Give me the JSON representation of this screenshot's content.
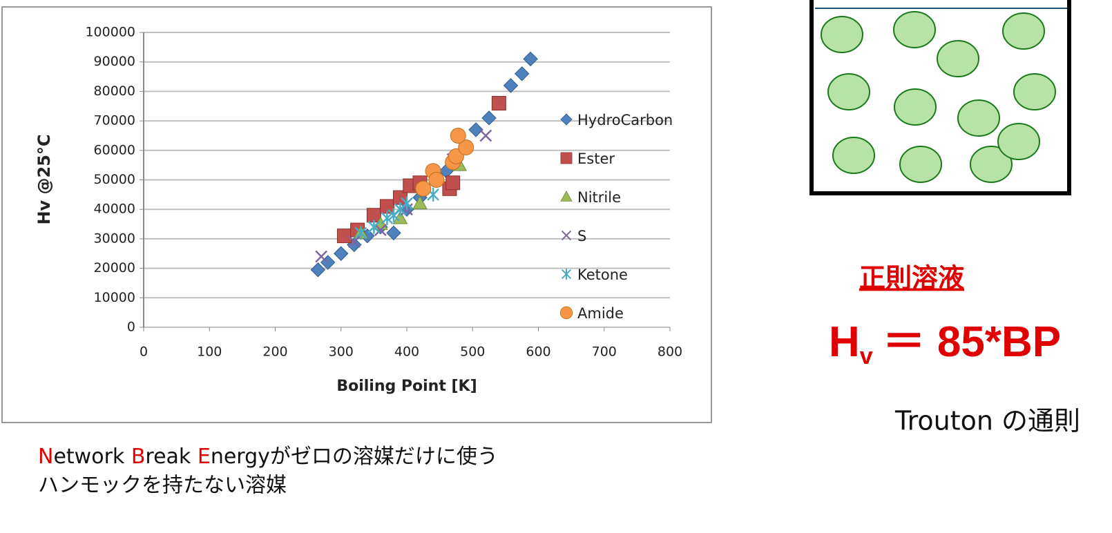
{
  "chart_data": {
    "type": "scatter",
    "x_label": "Boiling Point [K]",
    "y_label": "Hv @25°C",
    "xlim": [
      0,
      800
    ],
    "xticks": [
      0,
      100,
      200,
      300,
      400,
      500,
      600,
      700,
      800
    ],
    "ylim": [
      0,
      100000
    ],
    "yticks": [
      0,
      10000,
      20000,
      30000,
      40000,
      50000,
      60000,
      70000,
      80000,
      90000,
      100000
    ],
    "grid": true,
    "legend": "right",
    "series": [
      {
        "name": "HydroCarbon",
        "color": "#4f81bd",
        "marker": "diamond",
        "x": [
          265,
          280,
          300,
          320,
          340,
          360,
          380,
          400,
          420,
          460,
          505,
          525,
          558,
          575,
          588
        ],
        "values": [
          19500,
          22000,
          25000,
          28000,
          31000,
          34000,
          32000,
          40000,
          44000,
          53000,
          67000,
          71000,
          82000,
          86000,
          91000
        ]
      },
      {
        "name": "Ester",
        "color": "#c0504d",
        "marker": "square",
        "x": [
          305,
          325,
          350,
          370,
          390,
          405,
          420,
          465,
          470,
          540
        ],
        "values": [
          31000,
          33000,
          38000,
          41000,
          44000,
          48000,
          49000,
          47000,
          49000,
          76000
        ]
      },
      {
        "name": "Nitrile",
        "color": "#9bbb59",
        "marker": "triangle",
        "x": [
          330,
          360,
          390,
          420,
          480
        ],
        "values": [
          32000,
          35000,
          37000,
          42000,
          55000
        ]
      },
      {
        "name": "S",
        "color": "#8064a2",
        "marker": "x",
        "x": [
          270,
          320,
          360,
          400,
          470,
          520
        ],
        "values": [
          24000,
          29000,
          33000,
          40000,
          57000,
          65000
        ]
      },
      {
        "name": "Ketone",
        "color": "#4bacc6",
        "marker": "star",
        "x": [
          330,
          350,
          370,
          380,
          390,
          400,
          440
        ],
        "values": [
          32000,
          34000,
          37000,
          38000,
          40000,
          42000,
          45000
        ]
      },
      {
        "name": "Amide",
        "color": "#f79646",
        "marker": "circle",
        "x": [
          425,
          440,
          445,
          470,
          475,
          490,
          478
        ],
        "values": [
          47000,
          53000,
          50000,
          56000,
          58000,
          61000,
          65000
        ]
      }
    ]
  },
  "heading": "正則溶液",
  "formula": {
    "main": "H",
    "sub": "v",
    "rest": "＝ 85*BP"
  },
  "rule": "Trouton の通則",
  "note": {
    "line1": [
      "N",
      "etwork ",
      "B",
      "reak ",
      "E",
      "nergyがゼロの溶媒だけに使う"
    ],
    "line2": "ハンモックを持たない溶媒"
  }
}
